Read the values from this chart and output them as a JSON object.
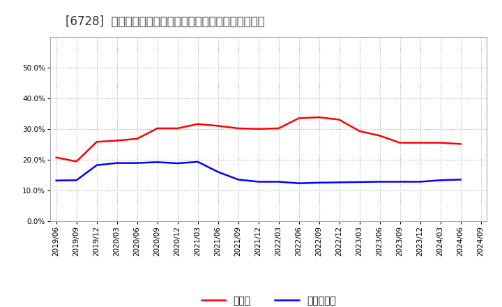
{
  "title": "[6728]  現預金、有利子負債の総資産に対する比率の推移",
  "x_labels": [
    "2019/06",
    "2019/09",
    "2019/12",
    "2020/03",
    "2020/06",
    "2020/09",
    "2020/12",
    "2021/03",
    "2021/06",
    "2021/09",
    "2021/12",
    "2022/03",
    "2022/06",
    "2022/09",
    "2022/12",
    "2023/03",
    "2023/06",
    "2023/09",
    "2023/12",
    "2024/03",
    "2024/06",
    "2024/09"
  ],
  "cash_values": [
    0.207,
    0.194,
    0.258,
    0.262,
    0.268,
    0.302,
    0.302,
    0.316,
    0.31,
    0.302,
    0.3,
    0.302,
    0.335,
    0.338,
    0.33,
    0.293,
    0.278,
    0.255,
    0.255,
    0.255,
    0.251,
    null
  ],
  "debt_values": [
    0.132,
    0.133,
    0.182,
    0.189,
    0.189,
    0.192,
    0.188,
    0.193,
    0.16,
    0.135,
    0.128,
    0.128,
    0.123,
    0.125,
    0.126,
    0.127,
    0.128,
    0.128,
    0.128,
    0.133,
    0.135,
    null
  ],
  "cash_color": "#ff0000",
  "debt_color": "#0000ff",
  "background_color": "#ffffff",
  "plot_bg_color": "#ffffff",
  "grid_color": "#aaaaaa",
  "ylim": [
    0.0,
    0.6
  ],
  "yticks": [
    0.0,
    0.1,
    0.2,
    0.3,
    0.4,
    0.5
  ],
  "legend_cash": "現預金",
  "legend_debt": "有利子負債",
  "title_fontsize": 12,
  "axis_fontsize": 7.5,
  "legend_fontsize": 10
}
